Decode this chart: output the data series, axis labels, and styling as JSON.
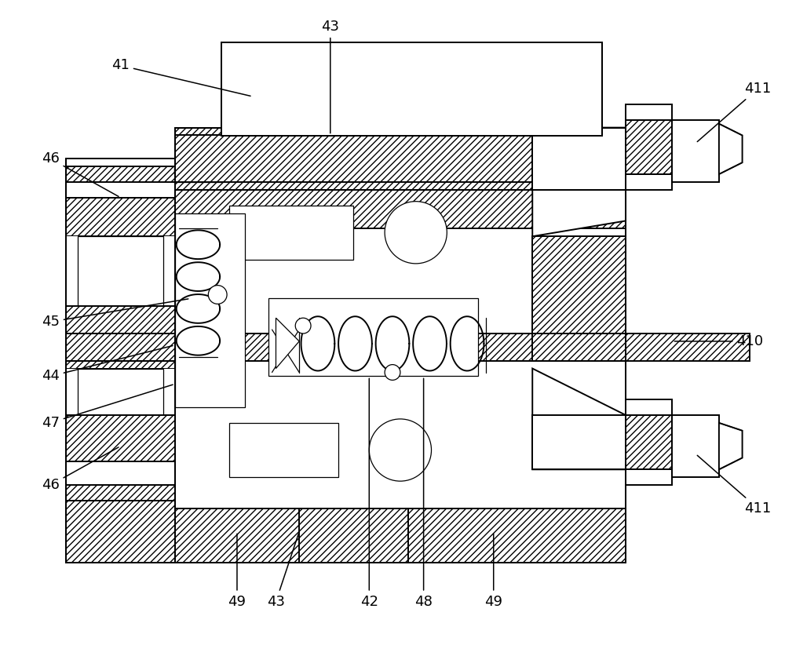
{
  "bg_color": "#ffffff",
  "line_color": "#000000",
  "figsize": [
    10.0,
    8.5
  ],
  "dpi": 100,
  "label_fs": 13
}
